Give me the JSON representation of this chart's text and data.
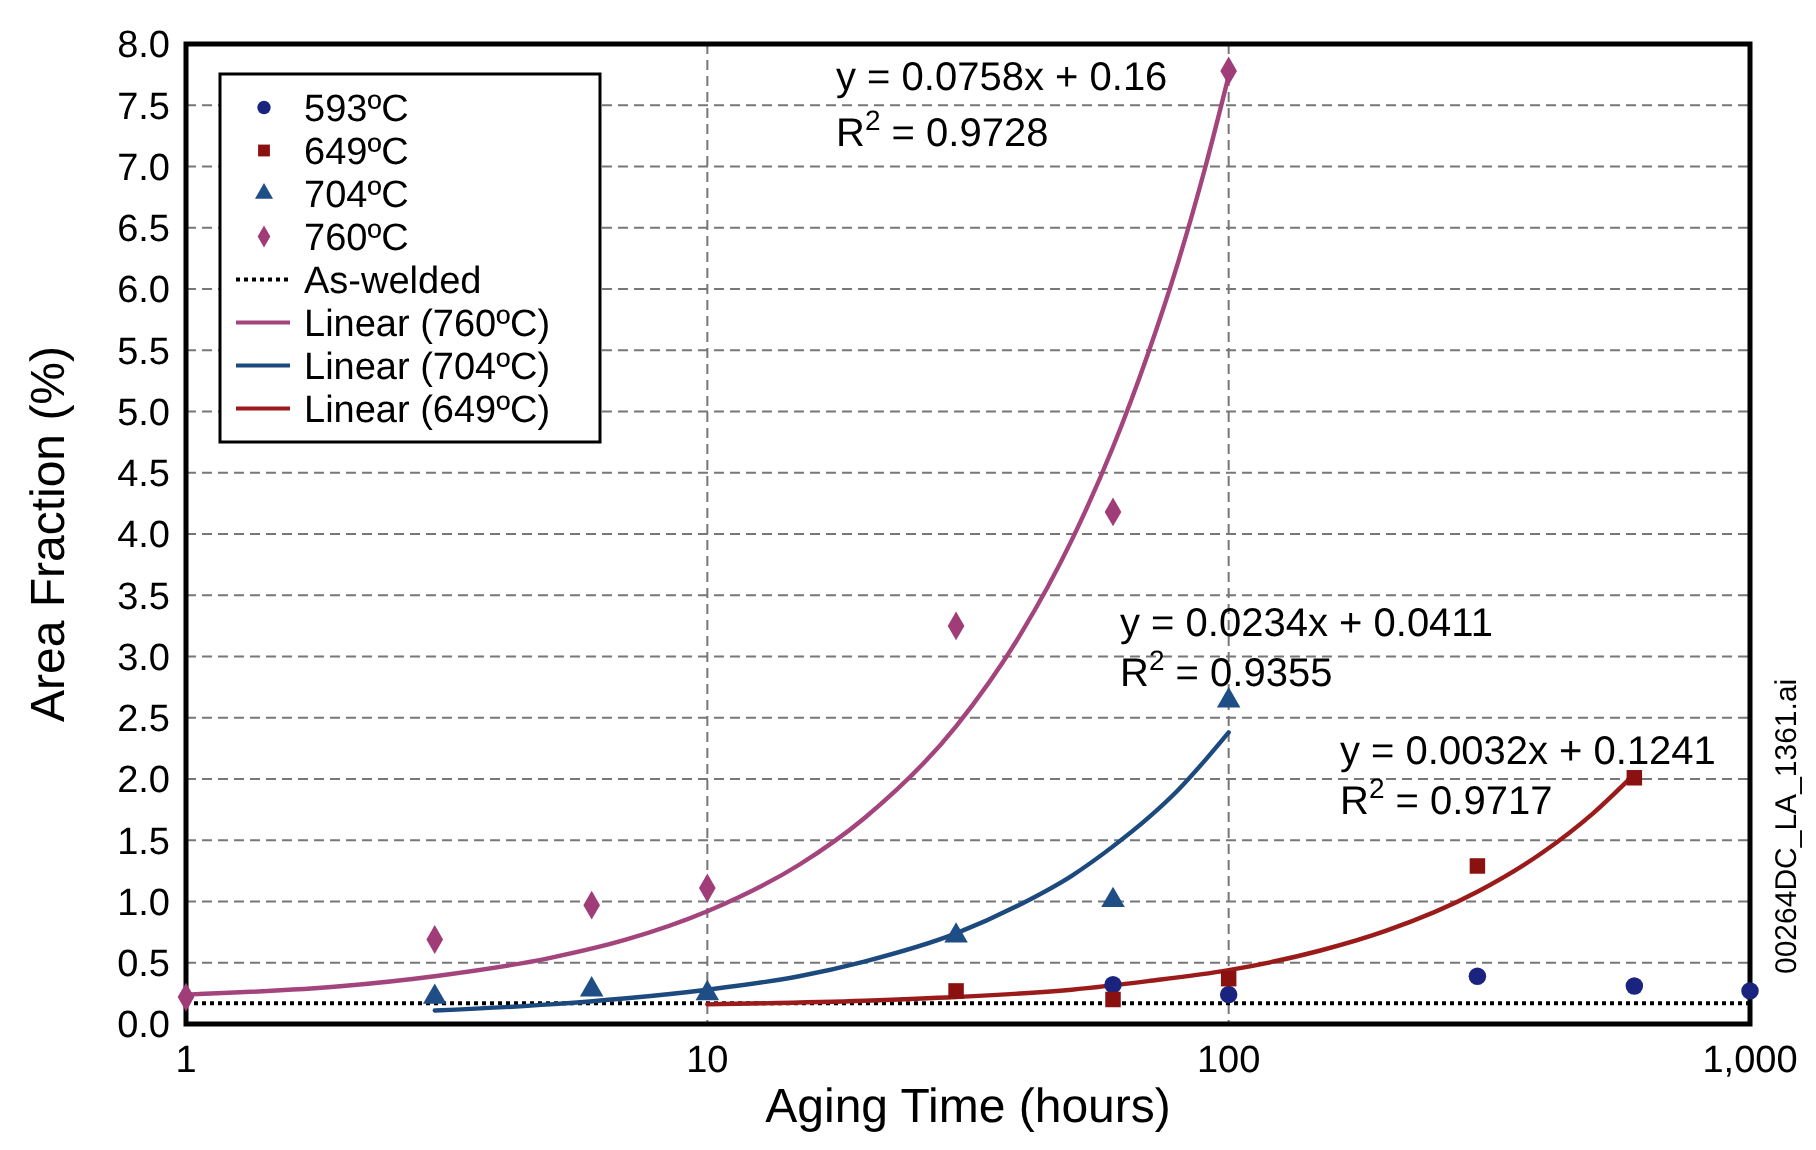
{
  "chart_data": {
    "type": "scatter",
    "xlabel": "Aging Time (hours)",
    "ylabel": "Area Fraction (%)",
    "log": "x",
    "grid": true,
    "legend": "top left",
    "xlim": [
      1,
      1000
    ],
    "xticks": [
      1,
      10,
      100,
      {
        "value": 1000,
        "label": "1,000"
      }
    ],
    "ylim": [
      0,
      8
    ],
    "yticks": [
      {
        "value": 0,
        "label": "0.0"
      },
      0.5,
      {
        "value": 1,
        "label": "1.0"
      },
      1.5,
      {
        "value": 2,
        "label": "2.0"
      },
      2.5,
      {
        "value": 3,
        "label": "3.0"
      },
      3.5,
      {
        "value": 4,
        "label": "4.0"
      },
      4.5,
      {
        "value": 5,
        "label": "5.0"
      },
      5.5,
      {
        "value": 6,
        "label": "6.0"
      },
      6.5,
      {
        "value": 7,
        "label": "7.0"
      },
      7.5,
      {
        "value": 8,
        "label": "8.0"
      }
    ],
    "series": [
      {
        "name": "593ºC",
        "marker": "circle",
        "color": "#1a237e",
        "x": [
          60,
          100,
          300,
          600,
          1000
        ],
        "values": [
          0.32,
          0.24,
          0.39,
          0.31,
          0.27
        ]
      },
      {
        "name": "649ºC",
        "marker": "square",
        "color": "#8b1010",
        "x": [
          30,
          60,
          100,
          300,
          600
        ],
        "values": [
          0.27,
          0.2,
          0.37,
          1.29,
          2.01
        ]
      },
      {
        "name": "704ºC",
        "marker": "triangle",
        "color": "#1f4e86",
        "x": [
          3,
          6,
          10,
          30,
          60,
          100
        ],
        "values": [
          0.22,
          0.28,
          0.25,
          0.72,
          1.01,
          2.64
        ]
      },
      {
        "name": "760ºC",
        "marker": "diamond",
        "color": "#a03c78",
        "x": [
          1,
          3,
          6,
          10,
          30,
          60,
          100
        ],
        "values": [
          0.22,
          0.69,
          0.97,
          1.11,
          3.25,
          4.18,
          7.78
        ]
      },
      {
        "name": "As-welded",
        "type": "line",
        "line_style": "dotted",
        "color": "#000000",
        "x": [
          1,
          1000
        ],
        "values": [
          0.17,
          0.17
        ]
      },
      {
        "name": "Linear (760ºC)",
        "type": "line",
        "line_style": "solid",
        "color": "#a3457c",
        "x": [
          1,
          2,
          3,
          5,
          7,
          10,
          15,
          20,
          30,
          40,
          50,
          60,
          70,
          80,
          90,
          100
        ],
        "values": [
          0.24,
          0.31,
          0.39,
          0.54,
          0.69,
          0.92,
          1.3,
          1.68,
          2.43,
          3.19,
          3.95,
          4.71,
          5.47,
          6.22,
          6.98,
          7.74
        ]
      },
      {
        "name": "Linear (704ºC)",
        "type": "line",
        "line_style": "solid",
        "color": "#1c4a7e",
        "x": [
          3,
          5,
          7,
          10,
          15,
          20,
          30,
          40,
          50,
          60,
          70,
          80,
          90,
          100
        ],
        "values": [
          0.11,
          0.16,
          0.21,
          0.28,
          0.39,
          0.51,
          0.74,
          0.98,
          1.21,
          1.45,
          1.68,
          1.91,
          2.15,
          2.38
        ]
      },
      {
        "name": "Linear (649ºC)",
        "type": "line",
        "line_style": "solid",
        "color": "#9b1b1b",
        "x": [
          10,
          20,
          30,
          50,
          70,
          100,
          150,
          200,
          300,
          400,
          500,
          600
        ],
        "values": [
          0.16,
          0.19,
          0.22,
          0.28,
          0.35,
          0.44,
          0.6,
          0.76,
          1.08,
          1.4,
          1.72,
          2.04
        ]
      }
    ],
    "annotations": [
      "y = 0.0758x + 0.16",
      "R$^{2}$ = 0.9728",
      "y = 0.0234x + 0.0411",
      "R$^{2}$ = 0.9355",
      "y = 0.0032x + 0.1241",
      "R$^{2}$ = 0.9717",
      "00264DC_LA_1361.ai"
    ]
  }
}
